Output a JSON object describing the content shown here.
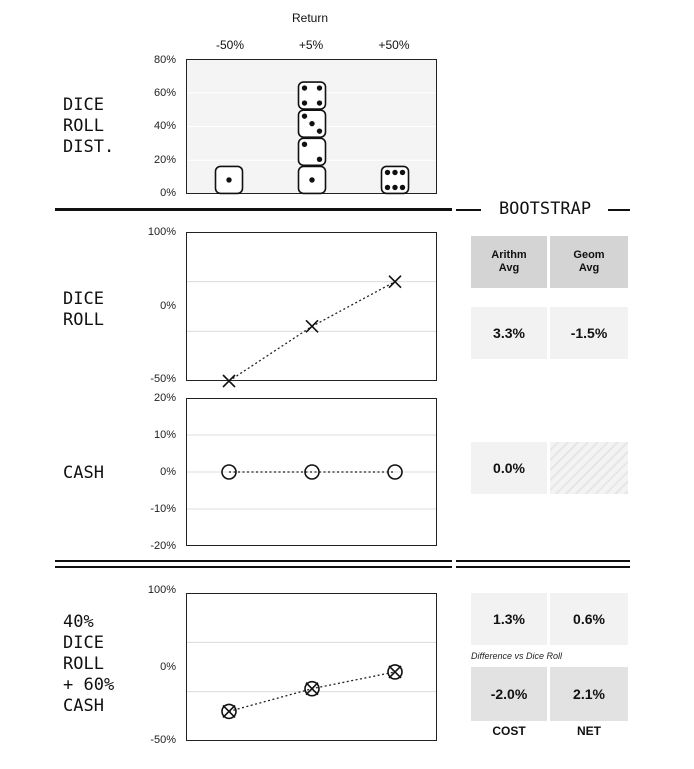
{
  "section_labels": {
    "dist": [
      "DICE",
      "ROLL",
      "DIST."
    ],
    "dice": [
      "DICE",
      "ROLL"
    ],
    "cash": [
      "CASH"
    ],
    "mix": [
      "40%",
      "DICE",
      "ROLL",
      "+ 60%",
      "CASH"
    ]
  },
  "bootstrap_title": "BOOTSTRAP",
  "table": {
    "headers": [
      "Arithm\nAvg",
      "Geom\nAvg"
    ],
    "dice": {
      "arith": "3.3%",
      "geom": "-1.5%"
    },
    "cash": {
      "arith": "0.0%"
    },
    "mix": {
      "arith": "1.3%",
      "geom": "0.6%"
    },
    "diff_note": "Difference vs Dice Roll",
    "diff": {
      "cost": "-2.0%",
      "net": "2.1%"
    },
    "diff_labels": [
      "COST",
      "NET"
    ]
  },
  "chart_data": [
    {
      "type": "bar",
      "title": "Return",
      "categories": [
        "-50%",
        "+5%",
        "+50%"
      ],
      "values": [
        16.7,
        66.7,
        16.7
      ],
      "ylim": [
        0,
        80
      ],
      "yticks": [
        "80%",
        "60%",
        "40%",
        "20%",
        "0%"
      ],
      "dice_faces": [
        [
          1
        ],
        [
          1,
          2,
          3,
          4
        ],
        [
          6
        ]
      ]
    },
    {
      "type": "line",
      "x": [
        "-50%",
        "+5%",
        "+50%"
      ],
      "y": [
        -50,
        5,
        50
      ],
      "marker": "x",
      "ylim": [
        -50,
        100
      ],
      "yticks": [
        "100%",
        "0%",
        "-50%"
      ]
    },
    {
      "type": "line",
      "x": [
        "-50%",
        "+5%",
        "+50%"
      ],
      "y": [
        0,
        0,
        0
      ],
      "marker": "o",
      "ylim": [
        -20,
        20
      ],
      "yticks": [
        "20%",
        "10%",
        "0%",
        "-10%",
        "-20%"
      ]
    },
    {
      "type": "line",
      "x": [
        "-50%",
        "+5%",
        "+50%"
      ],
      "y": [
        -20,
        3,
        20
      ],
      "marker": "ox",
      "ylim": [
        -50,
        100
      ],
      "yticks": [
        "100%",
        "0%",
        "-50%"
      ]
    }
  ]
}
